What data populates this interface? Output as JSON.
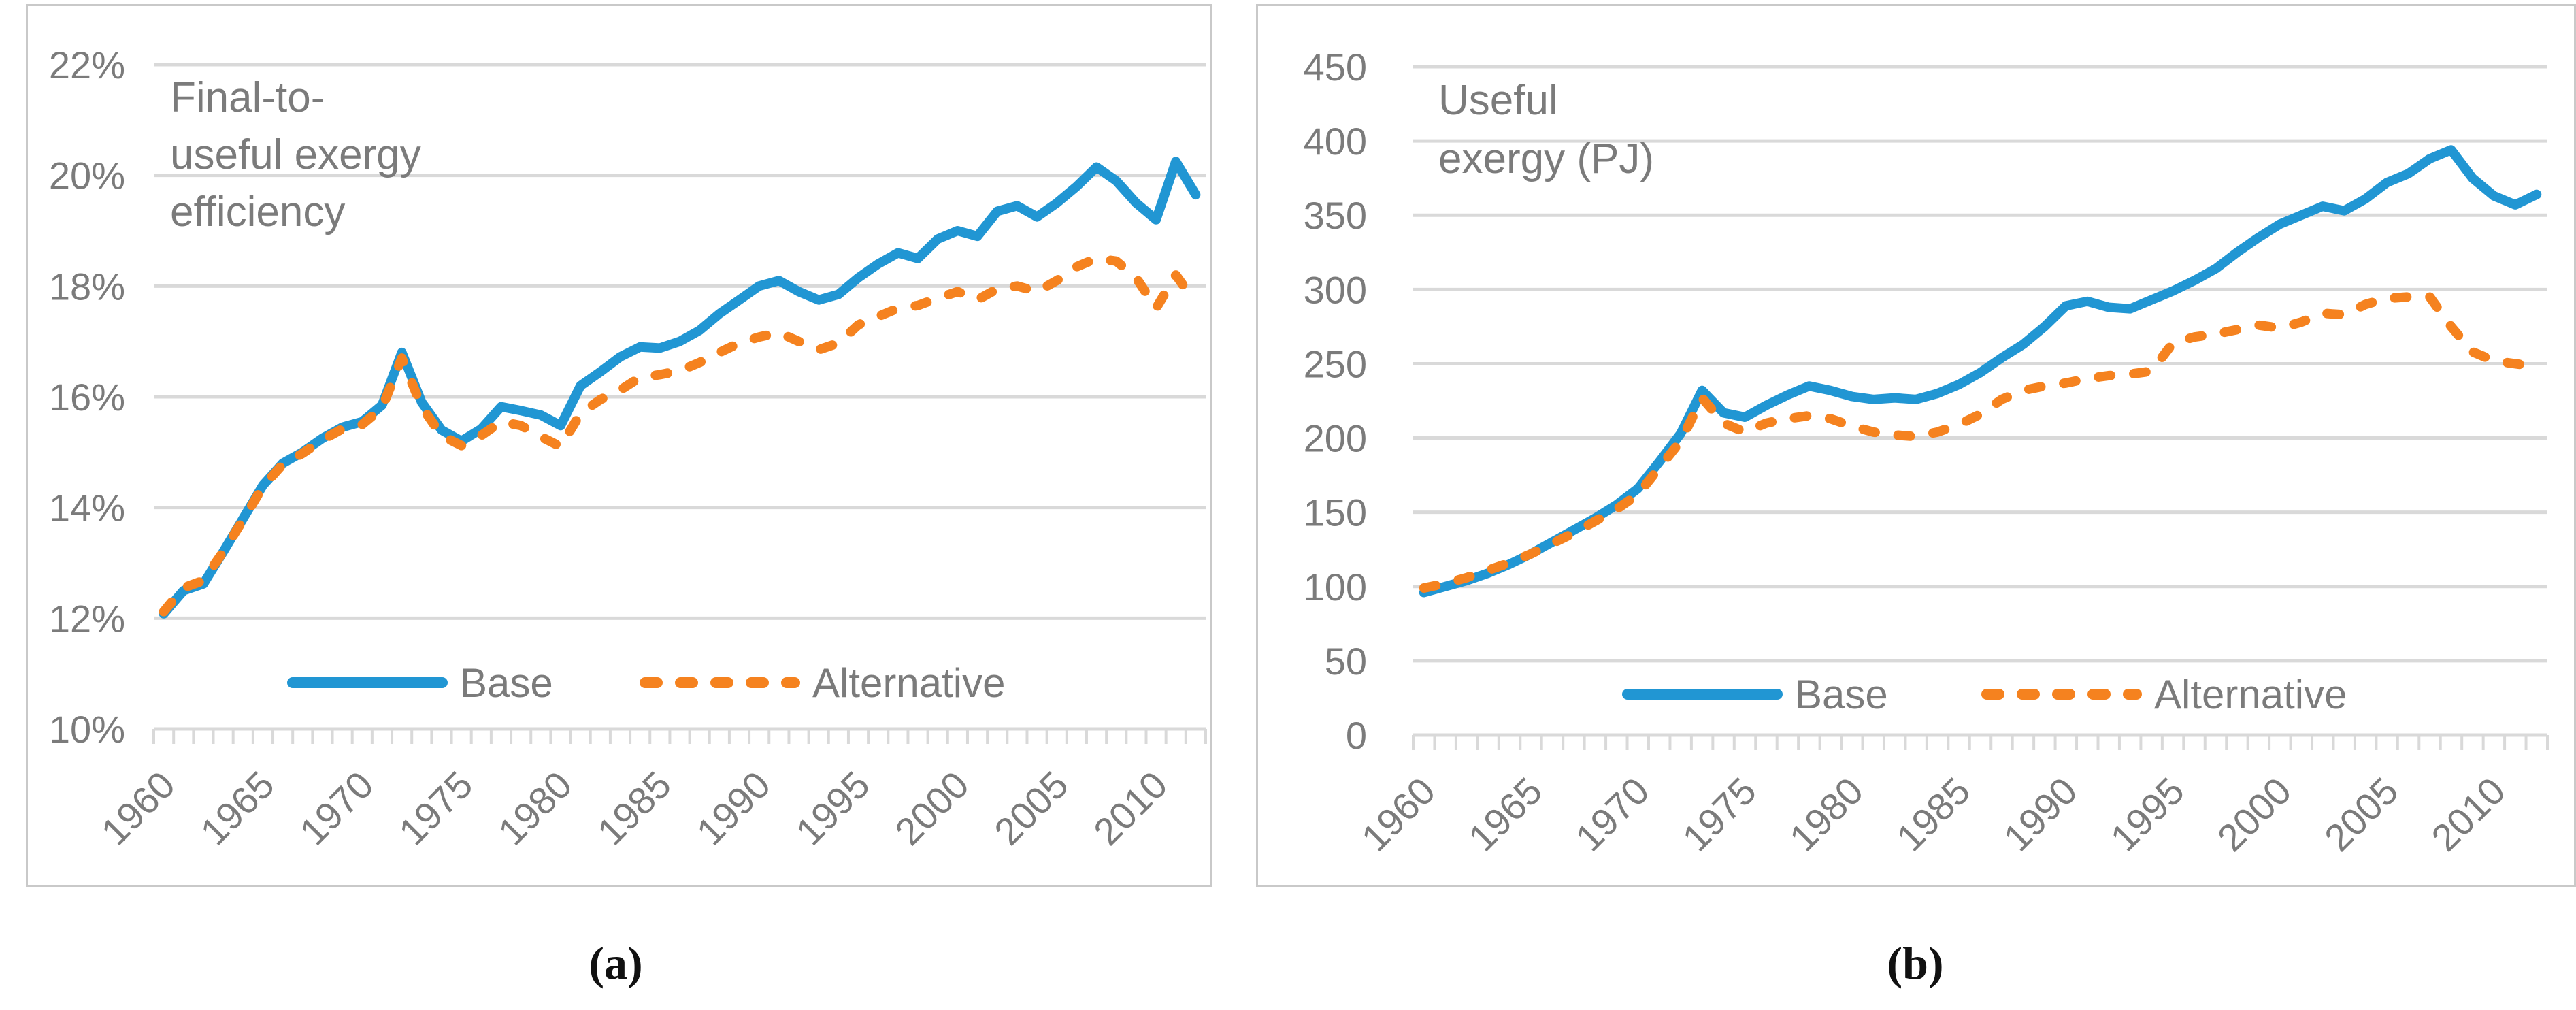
{
  "page": {
    "background": "#ffffff"
  },
  "captions": {
    "a": "(a)",
    "b": "(b)"
  },
  "colors": {
    "base_series": "#2196D3",
    "alternative_series": "#F5821F",
    "gridline": "#D9D9D9",
    "axis_line": "#D9D9D9",
    "text_gray": "#7B7B7B",
    "panel_border": "#C9C9C9",
    "caption_text": "#111111"
  },
  "legend": {
    "base_label": "Base",
    "alternative_label": "Alternative"
  },
  "chart_data": [
    {
      "type": "line",
      "panel": "a",
      "title_lines": [
        "Final-to-",
        "useful exergy",
        "efficiency"
      ],
      "x_start_year": 1960,
      "x_end_year": 2012,
      "xtick_labels": [
        "1960",
        "1965",
        "1970",
        "1975",
        "1980",
        "1985",
        "1990",
        "1995",
        "2000",
        "2005",
        "2010"
      ],
      "ytick_labels": [
        "22%",
        "20%",
        "18%",
        "16%",
        "14%",
        "12%",
        "10%"
      ],
      "ytick_values": [
        22,
        20,
        18,
        16,
        14,
        12,
        10
      ],
      "ylim": [
        10,
        22
      ],
      "grid": true,
      "legend_position": "inside-bottom",
      "series": [
        {
          "name": "Base",
          "style": "solid",
          "values": [
            12.08,
            12.5,
            12.62,
            13.2,
            13.8,
            14.4,
            14.8,
            15.0,
            15.25,
            15.45,
            15.55,
            15.85,
            16.8,
            15.9,
            15.4,
            15.2,
            15.42,
            15.82,
            15.75,
            15.67,
            15.48,
            16.2,
            16.45,
            16.72,
            16.9,
            16.88,
            17.0,
            17.2,
            17.5,
            17.75,
            18.0,
            18.1,
            17.9,
            17.75,
            17.85,
            18.15,
            18.4,
            18.6,
            18.5,
            18.85,
            19.0,
            18.9,
            19.35,
            19.45,
            19.25,
            19.5,
            19.8,
            20.15,
            19.9,
            19.5,
            19.2,
            20.25,
            19.65
          ]
        },
        {
          "name": "Alternative",
          "style": "dashed",
          "values": [
            12.12,
            12.55,
            12.68,
            13.2,
            13.78,
            14.38,
            14.78,
            14.98,
            15.22,
            15.42,
            15.5,
            15.8,
            16.7,
            15.82,
            15.3,
            15.12,
            15.3,
            15.55,
            15.48,
            15.28,
            15.1,
            15.7,
            15.95,
            16.12,
            16.35,
            16.4,
            16.47,
            16.62,
            16.8,
            16.97,
            17.08,
            17.16,
            17.0,
            16.85,
            16.97,
            17.3,
            17.45,
            17.6,
            17.65,
            17.78,
            17.9,
            17.75,
            17.95,
            18.0,
            17.9,
            18.1,
            18.35,
            18.5,
            18.45,
            18.15,
            17.6,
            18.2,
            17.7
          ]
        }
      ]
    },
    {
      "type": "line",
      "panel": "b",
      "title_lines": [
        "Useful",
        "exergy (PJ)"
      ],
      "x_start_year": 1960,
      "x_end_year": 2012,
      "xtick_labels": [
        "1960",
        "1965",
        "1970",
        "1975",
        "1980",
        "1985",
        "1990",
        "1995",
        "2000",
        "2005",
        "2010"
      ],
      "ytick_labels": [
        "450",
        "400",
        "350",
        "300",
        "250",
        "200",
        "150",
        "100",
        "50",
        "0"
      ],
      "ytick_values": [
        450,
        400,
        350,
        300,
        250,
        200,
        150,
        100,
        50,
        0
      ],
      "ylim": [
        0,
        450
      ],
      "grid": true,
      "legend_position": "inside-bottom",
      "series": [
        {
          "name": "Base",
          "style": "solid",
          "values": [
            96,
            100,
            104,
            109,
            115,
            122,
            130,
            138,
            146,
            155,
            166,
            184,
            203,
            232,
            217,
            214,
            222,
            229,
            235,
            232,
            228,
            226,
            227,
            226,
            230,
            236,
            244,
            254,
            263,
            275,
            289,
            292,
            288,
            287,
            293,
            299,
            306,
            314,
            325,
            335,
            344,
            350,
            356,
            353,
            361,
            372,
            378,
            388,
            394,
            375,
            363,
            357,
            364
          ]
        },
        {
          "name": "Alternative",
          "style": "dashed",
          "values": [
            99,
            102,
            106,
            111,
            116,
            122,
            129,
            136,
            144,
            152,
            162,
            180,
            198,
            227,
            210,
            204,
            210,
            213,
            215,
            213,
            208,
            204,
            202,
            201,
            204,
            209,
            216,
            226,
            232,
            235,
            237,
            240,
            242,
            243,
            245,
            264,
            268,
            270,
            273,
            276,
            274,
            278,
            284,
            283,
            290,
            294,
            295,
            295,
            275,
            258,
            252,
            250,
            248
          ]
        }
      ]
    }
  ]
}
